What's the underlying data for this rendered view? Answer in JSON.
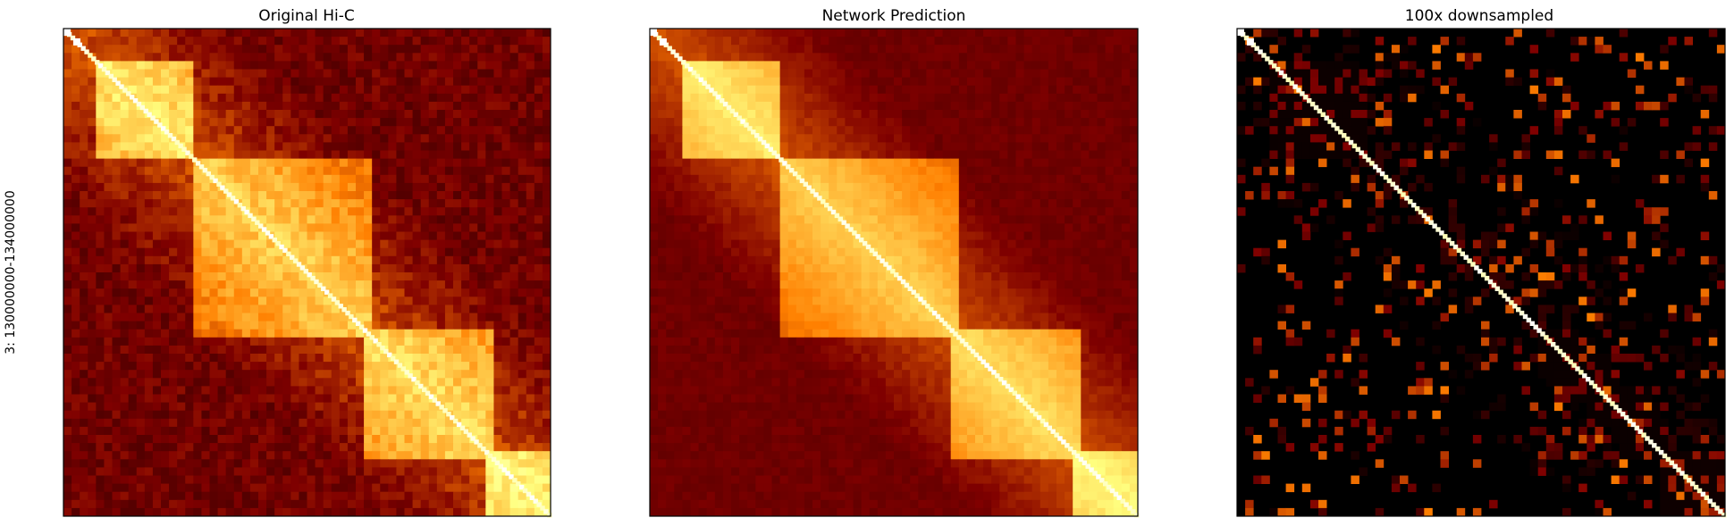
{
  "figure": {
    "ylabel": "3: 130000000-134000000"
  },
  "chart_data": [
    {
      "type": "heatmap",
      "title": "Original Hi-C",
      "colormap": "afmhot",
      "background": "#8a2200",
      "noise": 0.85,
      "diagonal_intensity": 1.0,
      "domains": [
        {
          "range": [
            0.07,
            0.27
          ],
          "strength": 0.55
        },
        {
          "range": [
            0.26,
            0.64
          ],
          "strength": 0.45
        },
        {
          "range": [
            0.62,
            0.88
          ],
          "strength": 0.5
        },
        {
          "range": [
            0.86,
            1.0
          ],
          "strength": 0.6
        }
      ],
      "corner_hotspots": [
        0.0,
        0.02
      ]
    },
    {
      "type": "heatmap",
      "title": "Network Prediction",
      "colormap": "afmhot",
      "background": "#6a1500",
      "noise": 0.35,
      "diagonal_intensity": 1.0,
      "domains": [
        {
          "range": [
            0.07,
            0.27
          ],
          "strength": 0.55
        },
        {
          "range": [
            0.26,
            0.64
          ],
          "strength": 0.45
        },
        {
          "range": [
            0.62,
            0.88
          ],
          "strength": 0.5
        },
        {
          "range": [
            0.86,
            1.0
          ],
          "strength": 0.6
        }
      ],
      "corner_hotspots": [
        0.0,
        0.02
      ]
    },
    {
      "type": "heatmap",
      "title": "100x downsampled",
      "colormap": "afmhot",
      "background": "#000000",
      "noise": 0.06,
      "diagonal_intensity": 0.9,
      "domains": [
        {
          "range": [
            0.07,
            0.27
          ],
          "strength": 0.15
        },
        {
          "range": [
            0.62,
            0.88
          ],
          "strength": 0.12
        },
        {
          "range": [
            0.86,
            1.0
          ],
          "strength": 0.2
        }
      ],
      "corner_hotspots": [
        0.0,
        0.02
      ]
    }
  ]
}
